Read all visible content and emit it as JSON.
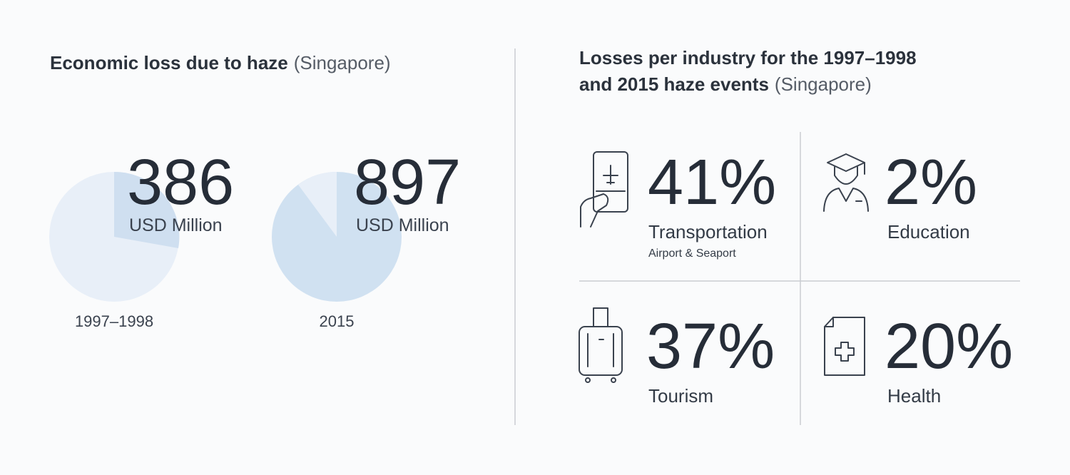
{
  "left": {
    "title": "Economic loss due to haze",
    "title_note": "(Singapore)",
    "items": [
      {
        "value": "386",
        "unit": "USD Million",
        "period": "1997–1998"
      },
      {
        "value": "897",
        "unit": "USD Million",
        "period": "2015"
      }
    ]
  },
  "right": {
    "title_lines": [
      "Losses per industry for the 1997–1998",
      "and 2015 haze events"
    ],
    "title_note": "(Singapore)",
    "industries": [
      {
        "value": "41%",
        "label": "Transportation",
        "sublabel": "Airport & Seaport"
      },
      {
        "value": "2%",
        "label": "Education"
      },
      {
        "value": "37%",
        "label": "Tourism"
      },
      {
        "value": "20%",
        "label": "Health"
      }
    ]
  }
}
